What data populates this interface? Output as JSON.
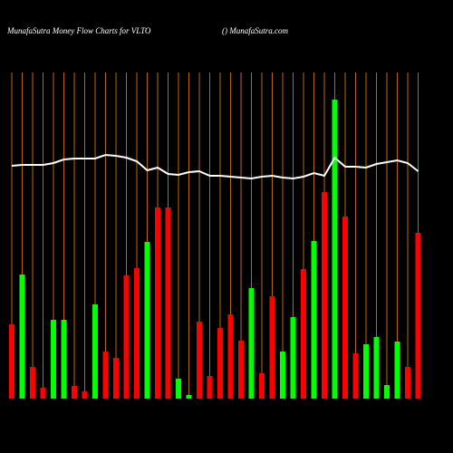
{
  "chart_data": {
    "type": "bar",
    "title": "MunafaSutra  Money Flow  Charts for VLTO",
    "subtitle": "() MunafaSutra.com",
    "categories": [
      null,
      null,
      null,
      null,
      null,
      null,
      null,
      null,
      null,
      null,
      null,
      null,
      null,
      null,
      null,
      null,
      null,
      null,
      null,
      null,
      null,
      null,
      null,
      null,
      null,
      null,
      null,
      null,
      null,
      null,
      null,
      null,
      null,
      null,
      null,
      null,
      null,
      null,
      null,
      null
    ],
    "series": [
      {
        "type": "bar",
        "values": [
          82,
          137,
          35,
          12,
          87,
          87,
          14,
          8,
          104,
          52,
          45,
          136,
          144,
          173,
          211,
          211,
          22,
          4,
          85,
          25,
          78,
          93,
          64,
          122,
          28,
          113,
          52,
          90,
          143,
          174,
          228,
          330,
          201,
          50,
          60,
          68,
          15,
          63,
          35,
          183
        ],
        "colors": [
          "#ff0000",
          "#00ff00",
          "#ff0000",
          "#ff0000",
          "#00ff00",
          "#00ff00",
          "#ff0000",
          "#ff0000",
          "#00ff00",
          "#ff0000",
          "#ff0000",
          "#ff0000",
          "#ff0000",
          "#00ff00",
          "#ff0000",
          "#ff0000",
          "#00ff00",
          "#00ff00",
          "#ff0000",
          "#ff0000",
          "#ff0000",
          "#ff0000",
          "#ff0000",
          "#00ff00",
          "#ff0000",
          "#ff0000",
          "#00ff00",
          "#00ff00",
          "#ff0000",
          "#00ff00",
          "#ff0000",
          "#00ff00",
          "#ff0000",
          "#ff0000",
          "#00ff00",
          "#00ff00",
          "#00ff00",
          "#00ff00",
          "#ff0000",
          "#ff0000"
        ]
      },
      {
        "type": "line",
        "color": "#ffffff",
        "values": [
          257,
          258,
          258,
          258,
          260,
          264,
          265,
          265,
          265,
          269,
          268,
          266,
          262,
          252,
          255,
          248,
          247,
          250,
          251,
          246,
          246,
          245,
          244,
          243,
          245,
          246,
          244,
          243,
          245,
          249,
          246,
          266,
          256,
          256,
          255,
          259,
          261,
          263,
          260,
          251
        ]
      }
    ],
    "ylim": [
      0,
      360
    ],
    "grid_color": "#b8670a"
  }
}
